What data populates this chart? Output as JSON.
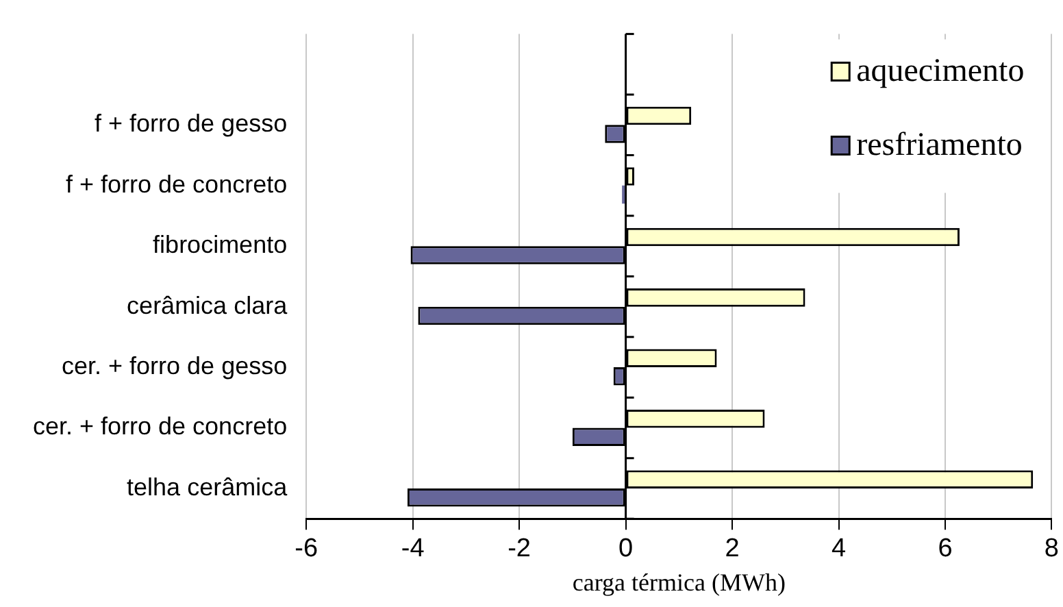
{
  "chart_data": {
    "type": "bar",
    "orientation": "horizontal",
    "xlabel": "carga térmica (MWh)",
    "categories": [
      null,
      "f + forro de gesso",
      "f + forro de concreto",
      "fibrocimento",
      "cerâmica clara",
      "cer. + forro de gesso",
      "cer. + forro de concreto",
      "telha cerâmica"
    ],
    "series": [
      {
        "name": "aquecimento",
        "color": "#ffffcc",
        "values": [
          null,
          1.23,
          0.16,
          6.27,
          3.37,
          1.71,
          2.61,
          7.65
        ]
      },
      {
        "name": "resfriamento",
        "color": "#666699",
        "values": [
          null,
          -0.39,
          -0.07,
          -4.04,
          -3.9,
          -0.23,
          -1.0,
          -4.1
        ]
      }
    ],
    "xlim": [
      -6,
      8
    ],
    "xticks": [
      -6,
      -4,
      -2,
      0,
      2,
      4,
      6,
      8
    ],
    "grid": "x",
    "legend": "top right"
  }
}
